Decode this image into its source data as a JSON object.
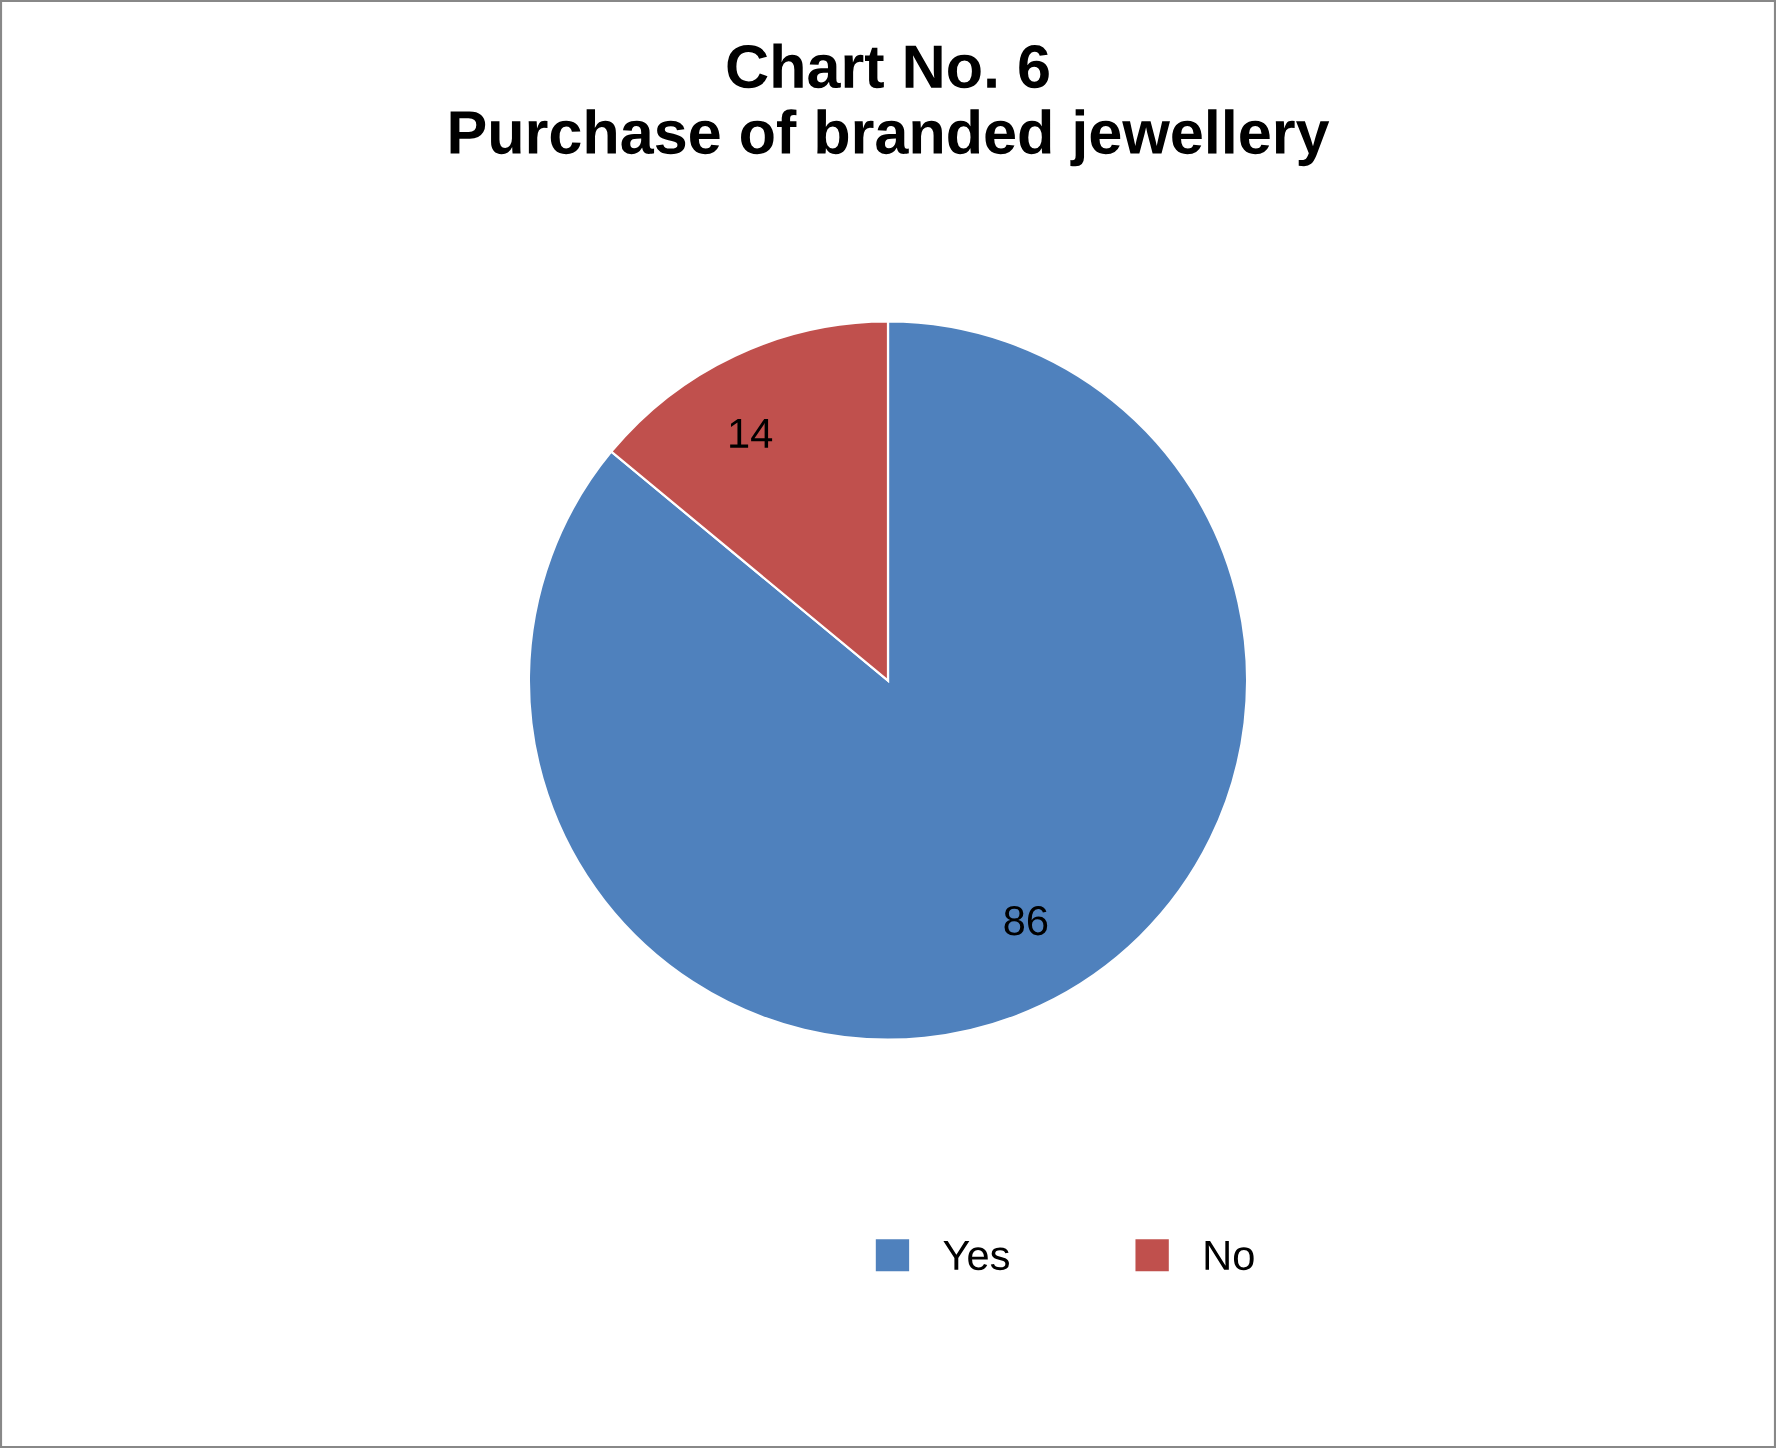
{
  "chart_data": {
    "type": "pie",
    "title": "Chart No. 6\nPurchase of branded jewellery",
    "categories": [
      "Yes",
      "No"
    ],
    "values": [
      86,
      14
    ],
    "colors": [
      "#4f81bd",
      "#c0504d"
    ],
    "data_labels": true,
    "legend": "bottom"
  }
}
